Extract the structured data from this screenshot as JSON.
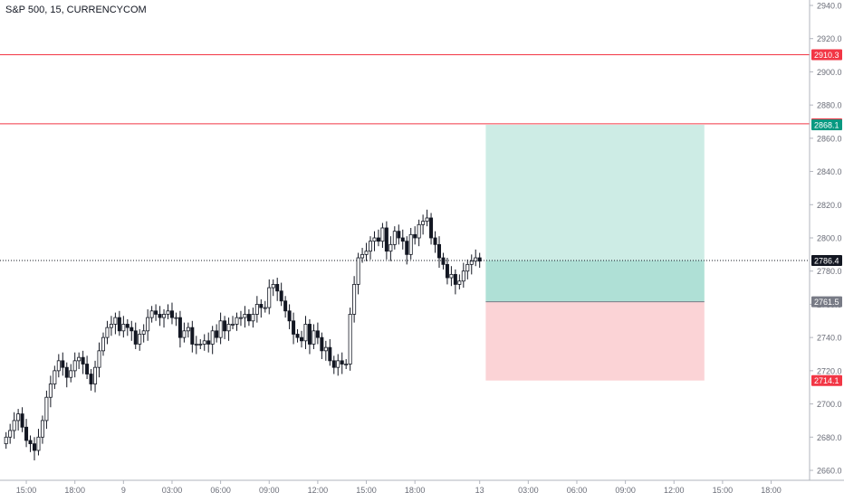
{
  "chart_data": {
    "type": "candlestick",
    "title": "S&P 500, 15, CURRENCYCOM",
    "ylim": [
      2655,
      2942
    ],
    "y_ticks": [
      2660,
      2680,
      2700,
      2720,
      2740,
      2760,
      2780,
      2800,
      2820,
      2840,
      2860,
      2880,
      2900,
      2920,
      2940
    ],
    "y_tick_labels": [
      "2660.0",
      "2680.0",
      "2700.0",
      "2720.0",
      "2740.0",
      "2760.0",
      "2780.0",
      "2800.0",
      "2820.0",
      "2840.0",
      "2860.0",
      "2880.0",
      "2900.0",
      "2920.0",
      "2940.0"
    ],
    "x_ticks": [
      {
        "label": "15:00",
        "slot": 6
      },
      {
        "label": "18:00",
        "slot": 18
      },
      {
        "label": "9",
        "slot": 30
      },
      {
        "label": "03:00",
        "slot": 42
      },
      {
        "label": "06:00",
        "slot": 54
      },
      {
        "label": "09:00",
        "slot": 66
      },
      {
        "label": "12:00",
        "slot": 78
      },
      {
        "label": "15:00",
        "slot": 90
      },
      {
        "label": "18:00",
        "slot": 102
      },
      {
        "label": "13",
        "slot": 118
      },
      {
        "label": "03:00",
        "slot": 130
      },
      {
        "label": "06:00",
        "slot": 142
      },
      {
        "label": "09:00",
        "slot": 154
      },
      {
        "label": "12:00",
        "slot": 166
      },
      {
        "label": "15:00",
        "slot": 178
      },
      {
        "label": "18:00",
        "slot": 190
      }
    ],
    "x_slots_total": 200,
    "closes": [
      2680,
      2684,
      2690,
      2694,
      2686,
      2678,
      2676,
      2672,
      2680,
      2690,
      2704,
      2712,
      2720,
      2726,
      2722,
      2716,
      2720,
      2726,
      2728,
      2724,
      2718,
      2712,
      2722,
      2732,
      2740,
      2746,
      2748,
      2752,
      2744,
      2748,
      2746,
      2744,
      2736,
      2742,
      2744,
      2752,
      2756,
      2754,
      2752,
      2754,
      2756,
      2752,
      2752,
      2740,
      2744,
      2746,
      2736,
      2736,
      2736,
      2738,
      2736,
      2744,
      2740,
      2750,
      2744,
      2748,
      2748,
      2752,
      2752,
      2754,
      2750,
      2754,
      2760,
      2758,
      2758,
      2770,
      2772,
      2768,
      2762,
      2756,
      2750,
      2742,
      2740,
      2738,
      2748,
      2736,
      2744,
      2740,
      2732,
      2734,
      2726,
      2722,
      2726,
      2724,
      2724,
      2754,
      2772,
      2788,
      2790,
      2792,
      2798,
      2800,
      2798,
      2806,
      2792,
      2796,
      2804,
      2800,
      2798,
      2790,
      2802,
      2800,
      2808,
      2810,
      2812,
      2800,
      2796,
      2788,
      2784,
      2776,
      2778,
      2772,
      2774,
      2780,
      2784,
      2786,
      2788,
      2786
    ],
    "open": [
      2676,
      2680,
      2684,
      2690,
      2694,
      2686,
      2678,
      2676,
      2672,
      2680,
      2690,
      2704,
      2712,
      2720,
      2726,
      2722,
      2716,
      2720,
      2726,
      2728,
      2724,
      2718,
      2712,
      2722,
      2732,
      2740,
      2746,
      2748,
      2752,
      2744,
      2748,
      2746,
      2744,
      2736,
      2742,
      2744,
      2752,
      2756,
      2754,
      2752,
      2754,
      2756,
      2752,
      2752,
      2740,
      2744,
      2746,
      2736,
      2736,
      2736,
      2738,
      2736,
      2744,
      2740,
      2750,
      2744,
      2748,
      2748,
      2752,
      2752,
      2754,
      2750,
      2754,
      2760,
      2758,
      2758,
      2770,
      2772,
      2768,
      2762,
      2756,
      2750,
      2742,
      2740,
      2738,
      2748,
      2736,
      2744,
      2740,
      2732,
      2734,
      2726,
      2722,
      2726,
      2724,
      2724,
      2754,
      2772,
      2788,
      2790,
      2792,
      2798,
      2800,
      2798,
      2806,
      2792,
      2796,
      2804,
      2800,
      2798,
      2790,
      2802,
      2800,
      2808,
      2810,
      2812,
      2800,
      2796,
      2788,
      2784,
      2776,
      2778,
      2772,
      2774,
      2780,
      2784,
      2786,
      2788
    ],
    "levels": [
      {
        "name": "resistance-line-upper",
        "value": 2910.3,
        "label": "2910.3",
        "color": "#f23645"
      },
      {
        "name": "resistance-line-lower",
        "value": 2868.7,
        "label": "2868.7",
        "color": "#f23645"
      }
    ],
    "price_line": {
      "value": 2786.4,
      "label": "2786.4",
      "color": "#131722"
    },
    "position": {
      "entry": 2761.5,
      "entry_label": "2761.5",
      "target": 2868.1,
      "target_label": "2868.1",
      "stop": 2714.1,
      "stop_label": "2714.1",
      "start_slot": 120,
      "end_slot": 173,
      "profit_color": "#9bd9cc",
      "loss_color": "#f7a8ad",
      "current": 2786.4
    },
    "colors": {
      "up": "#ffffff",
      "down": "#131722",
      "grid": "#e0e3eb",
      "axis_text": "#6a6d78"
    }
  }
}
